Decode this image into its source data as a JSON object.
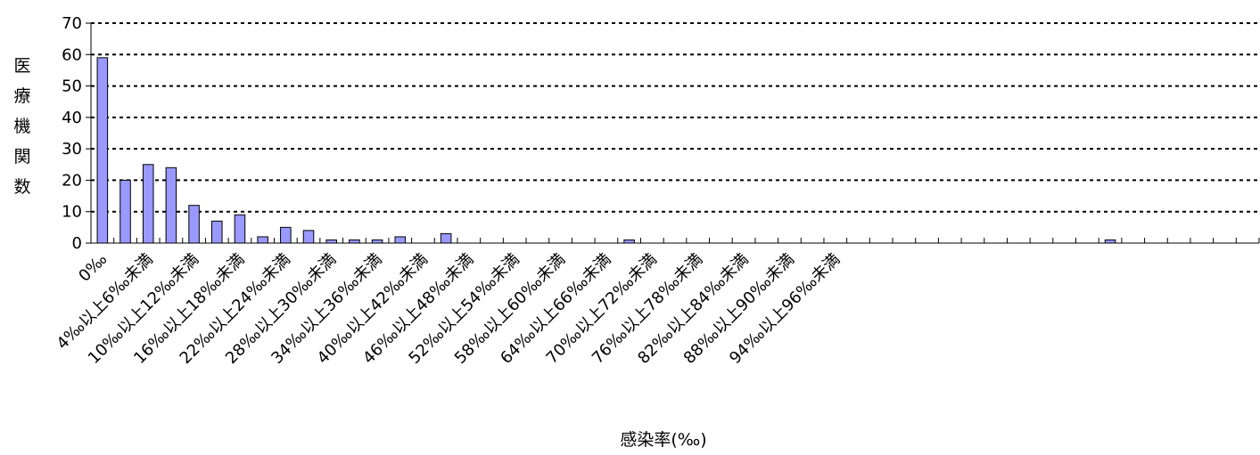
{
  "chart_data": {
    "type": "bar",
    "title": "",
    "xlabel": "感染率(‰)",
    "ylabel": "医療機関数",
    "ylim": [
      0,
      70
    ],
    "yticks": [
      0,
      10,
      20,
      30,
      40,
      50,
      60,
      70
    ],
    "grid": true,
    "bar_color": "#9999ff",
    "categories": [
      "0‰",
      "",
      "4‰以上6‰未満",
      "",
      "10‰以上12‰未満",
      "",
      "16‰以上18‰未満",
      "",
      "22‰以上24‰未満",
      "",
      "28‰以上30‰未満",
      "",
      "34‰以上36‰未満",
      "",
      "40‰以上42‰未満",
      "",
      "46‰以上48‰未満",
      "",
      "52‰以上54‰未満",
      "",
      "58‰以上60‰未満",
      "",
      "64‰以上66‰未満",
      "",
      "70‰以上72‰未満",
      "",
      "76‰以上78‰未満",
      "",
      "82‰以上84‰未満",
      "",
      "88‰以上90‰未満",
      "",
      "94‰以上96‰未満",
      "",
      "",
      "",
      "",
      "",
      "",
      "",
      "",
      "",
      "",
      "",
      "",
      "",
      "",
      "",
      "",
      "",
      ""
    ],
    "values": [
      59,
      20,
      25,
      24,
      12,
      7,
      9,
      2,
      5,
      4,
      1,
      1,
      1,
      2,
      0,
      3,
      0,
      0,
      0,
      0,
      0,
      0,
      0,
      1,
      0,
      0,
      0,
      0,
      0,
      0,
      0,
      0,
      0,
      0,
      0,
      0,
      0,
      0,
      0,
      0,
      0,
      0,
      0,
      0,
      1,
      0,
      0,
      0,
      0,
      0,
      0
    ]
  }
}
